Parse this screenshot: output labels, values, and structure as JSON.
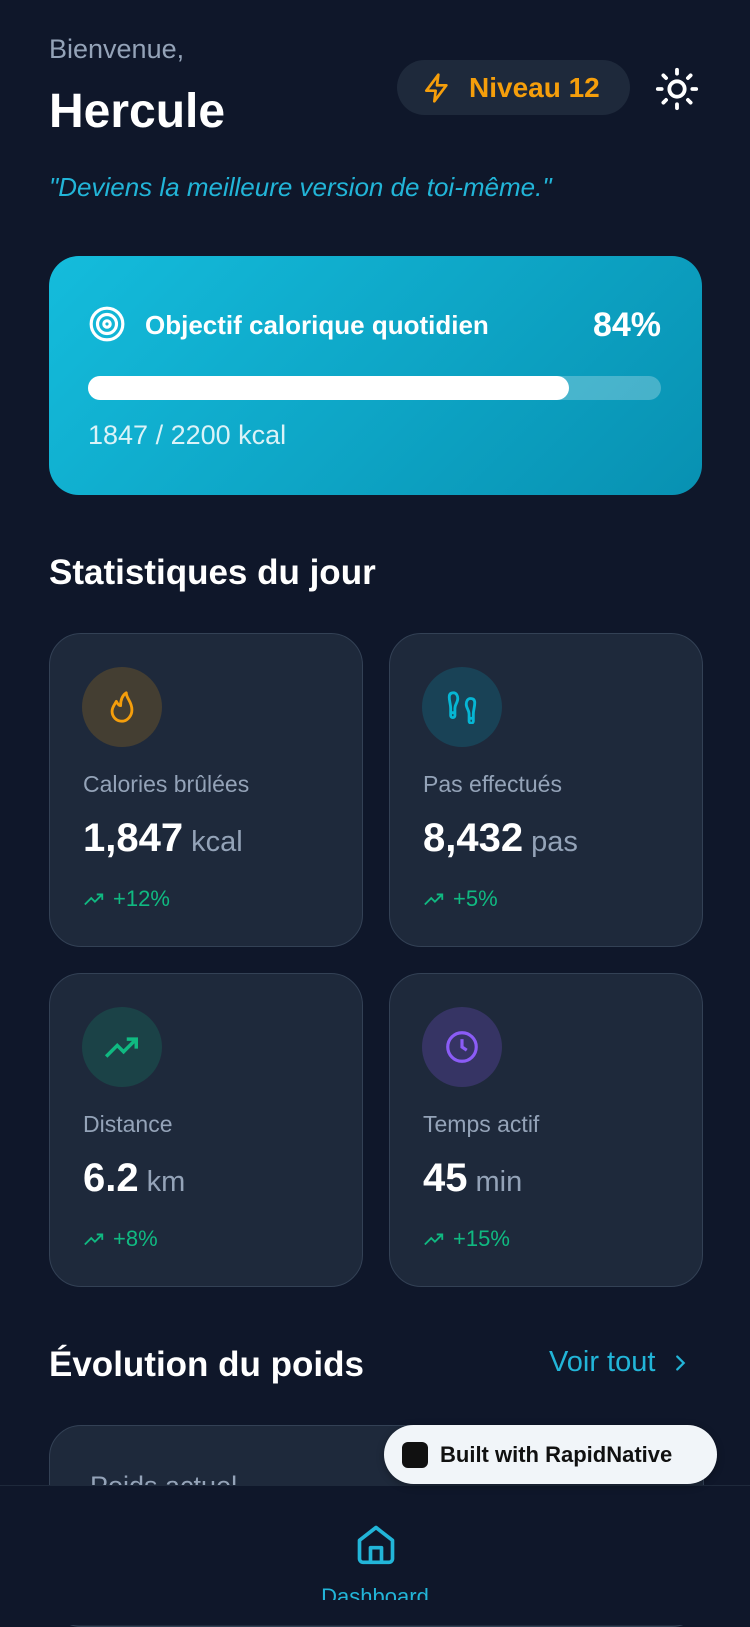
{
  "header": {
    "greeting": "Bienvenue,",
    "name": "Hercule",
    "level": "Niveau 12",
    "quote": "\"Deviens la meilleure version de toi-même.\""
  },
  "goal": {
    "title": "Objectif calorique quotidien",
    "progress": {
      "value": 84,
      "label": "84%"
    },
    "detail": "1847 / 2200 kcal"
  },
  "stats": {
    "title": "Statistiques du jour",
    "items": [
      {
        "label": "Calories brûlées",
        "value": "1,847",
        "unit": "kcal",
        "change": "+12%"
      },
      {
        "label": "Pas effectués",
        "value": "8,432",
        "unit": "pas",
        "change": "+5%"
      },
      {
        "label": "Distance",
        "value": "6.2",
        "unit": "km",
        "change": "+8%"
      },
      {
        "label": "Temps actif",
        "value": "45",
        "unit": "min",
        "change": "+15%"
      }
    ]
  },
  "weight": {
    "title": "Évolution du poids",
    "link": "Voir tout",
    "card_label": "Poids actuel"
  },
  "nav": {
    "items": [
      "Dashboard"
    ]
  },
  "badge": "Built with RapidNative"
}
